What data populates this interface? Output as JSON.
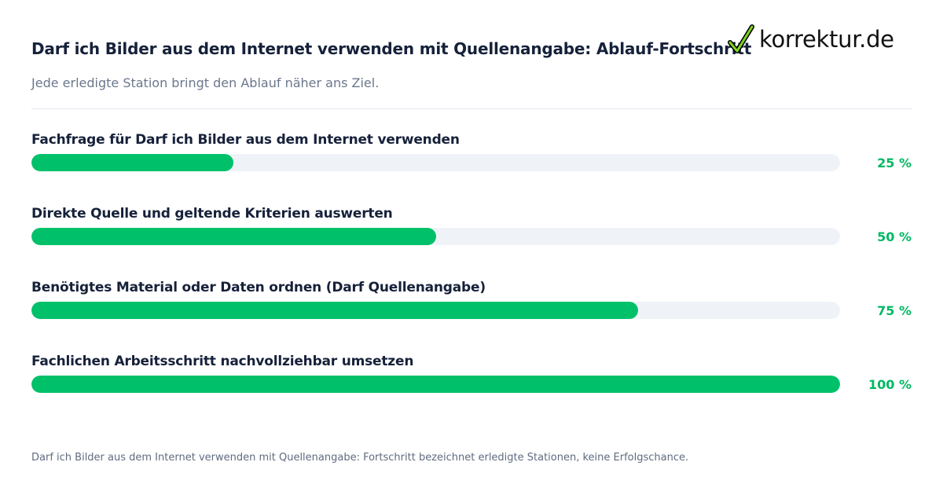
{
  "header": {
    "title": "Darf ich Bilder aus dem Internet verwenden mit Quellenangabe: Ablauf-Fortschritt",
    "subtitle": "Jede erledigte Station bringt den Ablauf näher ans Ziel.",
    "logo_text": "korrektur.de"
  },
  "colors": {
    "accent": "#00c16a",
    "track": "#eff3f8",
    "text": "#16213a",
    "muted": "#6b778c"
  },
  "chart_data": {
    "type": "bar",
    "orientation": "horizontal",
    "title": "Darf ich Bilder aus dem Internet verwenden mit Quellenangabe: Ablauf-Fortschritt",
    "xlim": [
      0,
      100
    ],
    "categories": [
      "Fachfrage für Darf ich Bilder aus dem Internet verwenden",
      "Direkte Quelle und geltende Kriterien auswerten",
      "Benötigtes Material oder Daten ordnen (Darf Quellenangabe)",
      "Fachlichen Arbeitsschritt nachvollziehbar umsetzen"
    ],
    "values": [
      25,
      50,
      75,
      100
    ],
    "value_labels": [
      "25 %",
      "50 %",
      "75 %",
      "100 %"
    ]
  },
  "footnote": "Darf ich Bilder aus dem Internet verwenden mit Quellenangabe: Fortschritt bezeichnet erledigte Stationen, keine Erfolgschance."
}
